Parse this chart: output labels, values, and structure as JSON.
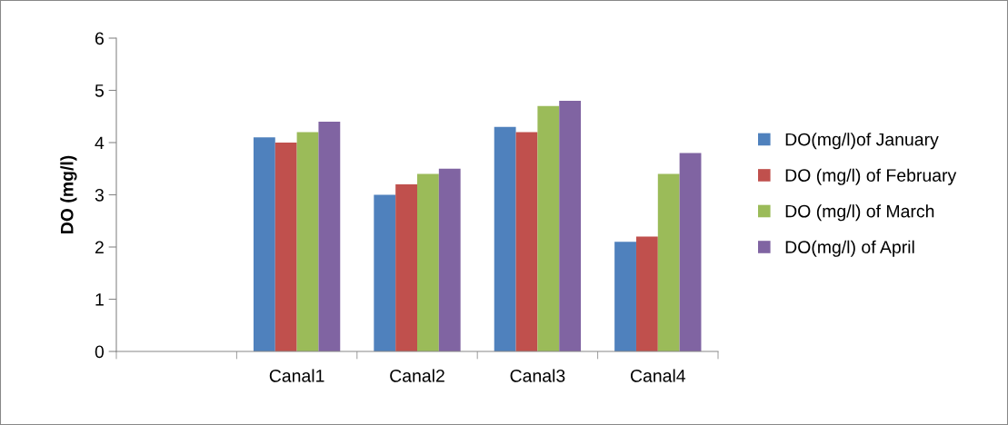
{
  "chart_data": {
    "type": "bar",
    "ylabel": "DO (mg/l)",
    "categories": [
      null,
      "Canal1",
      "Canal2",
      "Canal3",
      "Canal4"
    ],
    "series": [
      {
        "name": "DO(mg/l)of January",
        "color": "#4f81bd",
        "values": [
          null,
          4.1,
          3.0,
          4.3,
          2.1
        ]
      },
      {
        "name": "DO (mg/l) of February",
        "color": "#c0504d",
        "values": [
          null,
          4.0,
          3.2,
          4.2,
          2.2
        ]
      },
      {
        "name": "DO (mg/l) of March",
        "color": "#9bbb59",
        "values": [
          null,
          4.2,
          3.4,
          4.7,
          3.4
        ]
      },
      {
        "name": "DO(mg/l) of April",
        "color": "#8064a2",
        "values": [
          null,
          4.4,
          3.5,
          4.8,
          3.8
        ]
      }
    ],
    "ylim": [
      0,
      6
    ],
    "yticks": [
      0,
      1,
      2,
      3,
      4,
      5,
      6
    ],
    "grid": false,
    "legend": "right"
  }
}
